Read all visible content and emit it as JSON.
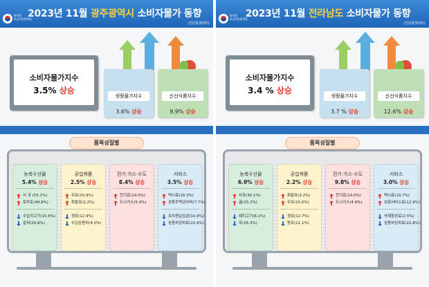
{
  "logo_text": [
    "통계청",
    "호남지방통계청"
  ],
  "palette": {
    "header": "#2b6fbf",
    "highlight": "#ffd23e",
    "up": "#e83a2f",
    "down": "#2f68b4",
    "card_agri": "#d7eedf",
    "card_ind": "#fdf3cc",
    "card_util": "#fde0e0",
    "card_serv": "#d9ebf7"
  },
  "panels": [
    {
      "title_year": "2023년 11월",
      "title_region": "광주광역시",
      "title_tail": "소비자물가 동향",
      "note": "(전년동월대비)",
      "main": {
        "label": "소비자물가지수",
        "value": "3.5%",
        "dir": "상승"
      },
      "bags": [
        {
          "label": "생활물가지수",
          "value": "3.6%",
          "dir": "상승"
        },
        {
          "label": "신선식품지수",
          "value": "9.9%",
          "dir": "상승"
        }
      ],
      "section_title": "품목성질별",
      "cards": [
        {
          "name": "농축수산물",
          "value": "5.4%",
          "dir": "상승",
          "up": [
            "사 과 (55.1%)",
            "토마토(49.8%)"
          ],
          "down": [
            "수입쇠고기(15.6%)",
            "갈치(29.8%)"
          ]
        },
        {
          "name": "공업제품",
          "value": "2.5%",
          "dir": "상승",
          "up": [
            "우유(15.9%)",
            "휘발유(2.2%)"
          ],
          "down": [
            "경유(12.9%)",
            "수입승용차(4.0%)"
          ]
        },
        {
          "name": "전기·가스·수도",
          "value": "8.4%",
          "dir": "상승",
          "up": [
            "전기료(14.0%)",
            "도시가스(5.0%)"
          ],
          "down": []
        },
        {
          "name": "서비스",
          "value": "3.5%",
          "dir": "상승",
          "up": [
            "택시료(18.3%)",
            "공동주택관리비(7.7%)"
          ],
          "down": [
            "유치원납입금(10.8%)",
            "승용차임차료(22.8%)"
          ]
        }
      ]
    },
    {
      "title_year": "2023년 11월",
      "title_region": "전라남도",
      "title_tail": "소비자물가 동향",
      "note": "(전년동월대비)",
      "main": {
        "label": "소비자물가지수",
        "value": "3.4 %",
        "dir": "상승"
      },
      "bags": [
        {
          "label": "생활물가지수",
          "value": "3.7 %",
          "dir": "상승"
        },
        {
          "label": "신선식품지수",
          "value": "12.6%",
          "dir": "상승"
        }
      ],
      "section_title": "품목성질별",
      "cards": [
        {
          "name": "농축수산물",
          "value": "6.9%",
          "dir": "상승",
          "up": [
            "사과(36.1%)",
            "귤(25.2%)"
          ],
          "down": [
            "돼지고기(6.1%)",
            "무(26.3%)"
          ]
        },
        {
          "name": "공업제품",
          "value": "2.2%",
          "dir": "상승",
          "up": [
            "휘발유(3.2%)",
            "우유(15.0%)"
          ],
          "down": [
            "경유(12.7%)",
            "등유(11.1%)"
          ]
        },
        {
          "name": "전기·가스·수도",
          "value": "9.8%",
          "dir": "상승",
          "up": [
            "전기료(14.0%)",
            "도시가스(4.9%)"
          ],
          "down": []
        },
        {
          "name": "서비스",
          "value": "3.0%",
          "dir": "상승",
          "up": [
            "택시료(19.7%)",
            "보험서비스료(12.9%)"
          ],
          "down": [
            "국제항공료(2.5%)",
            "승용차임차료(22.8%)"
          ]
        }
      ]
    }
  ]
}
